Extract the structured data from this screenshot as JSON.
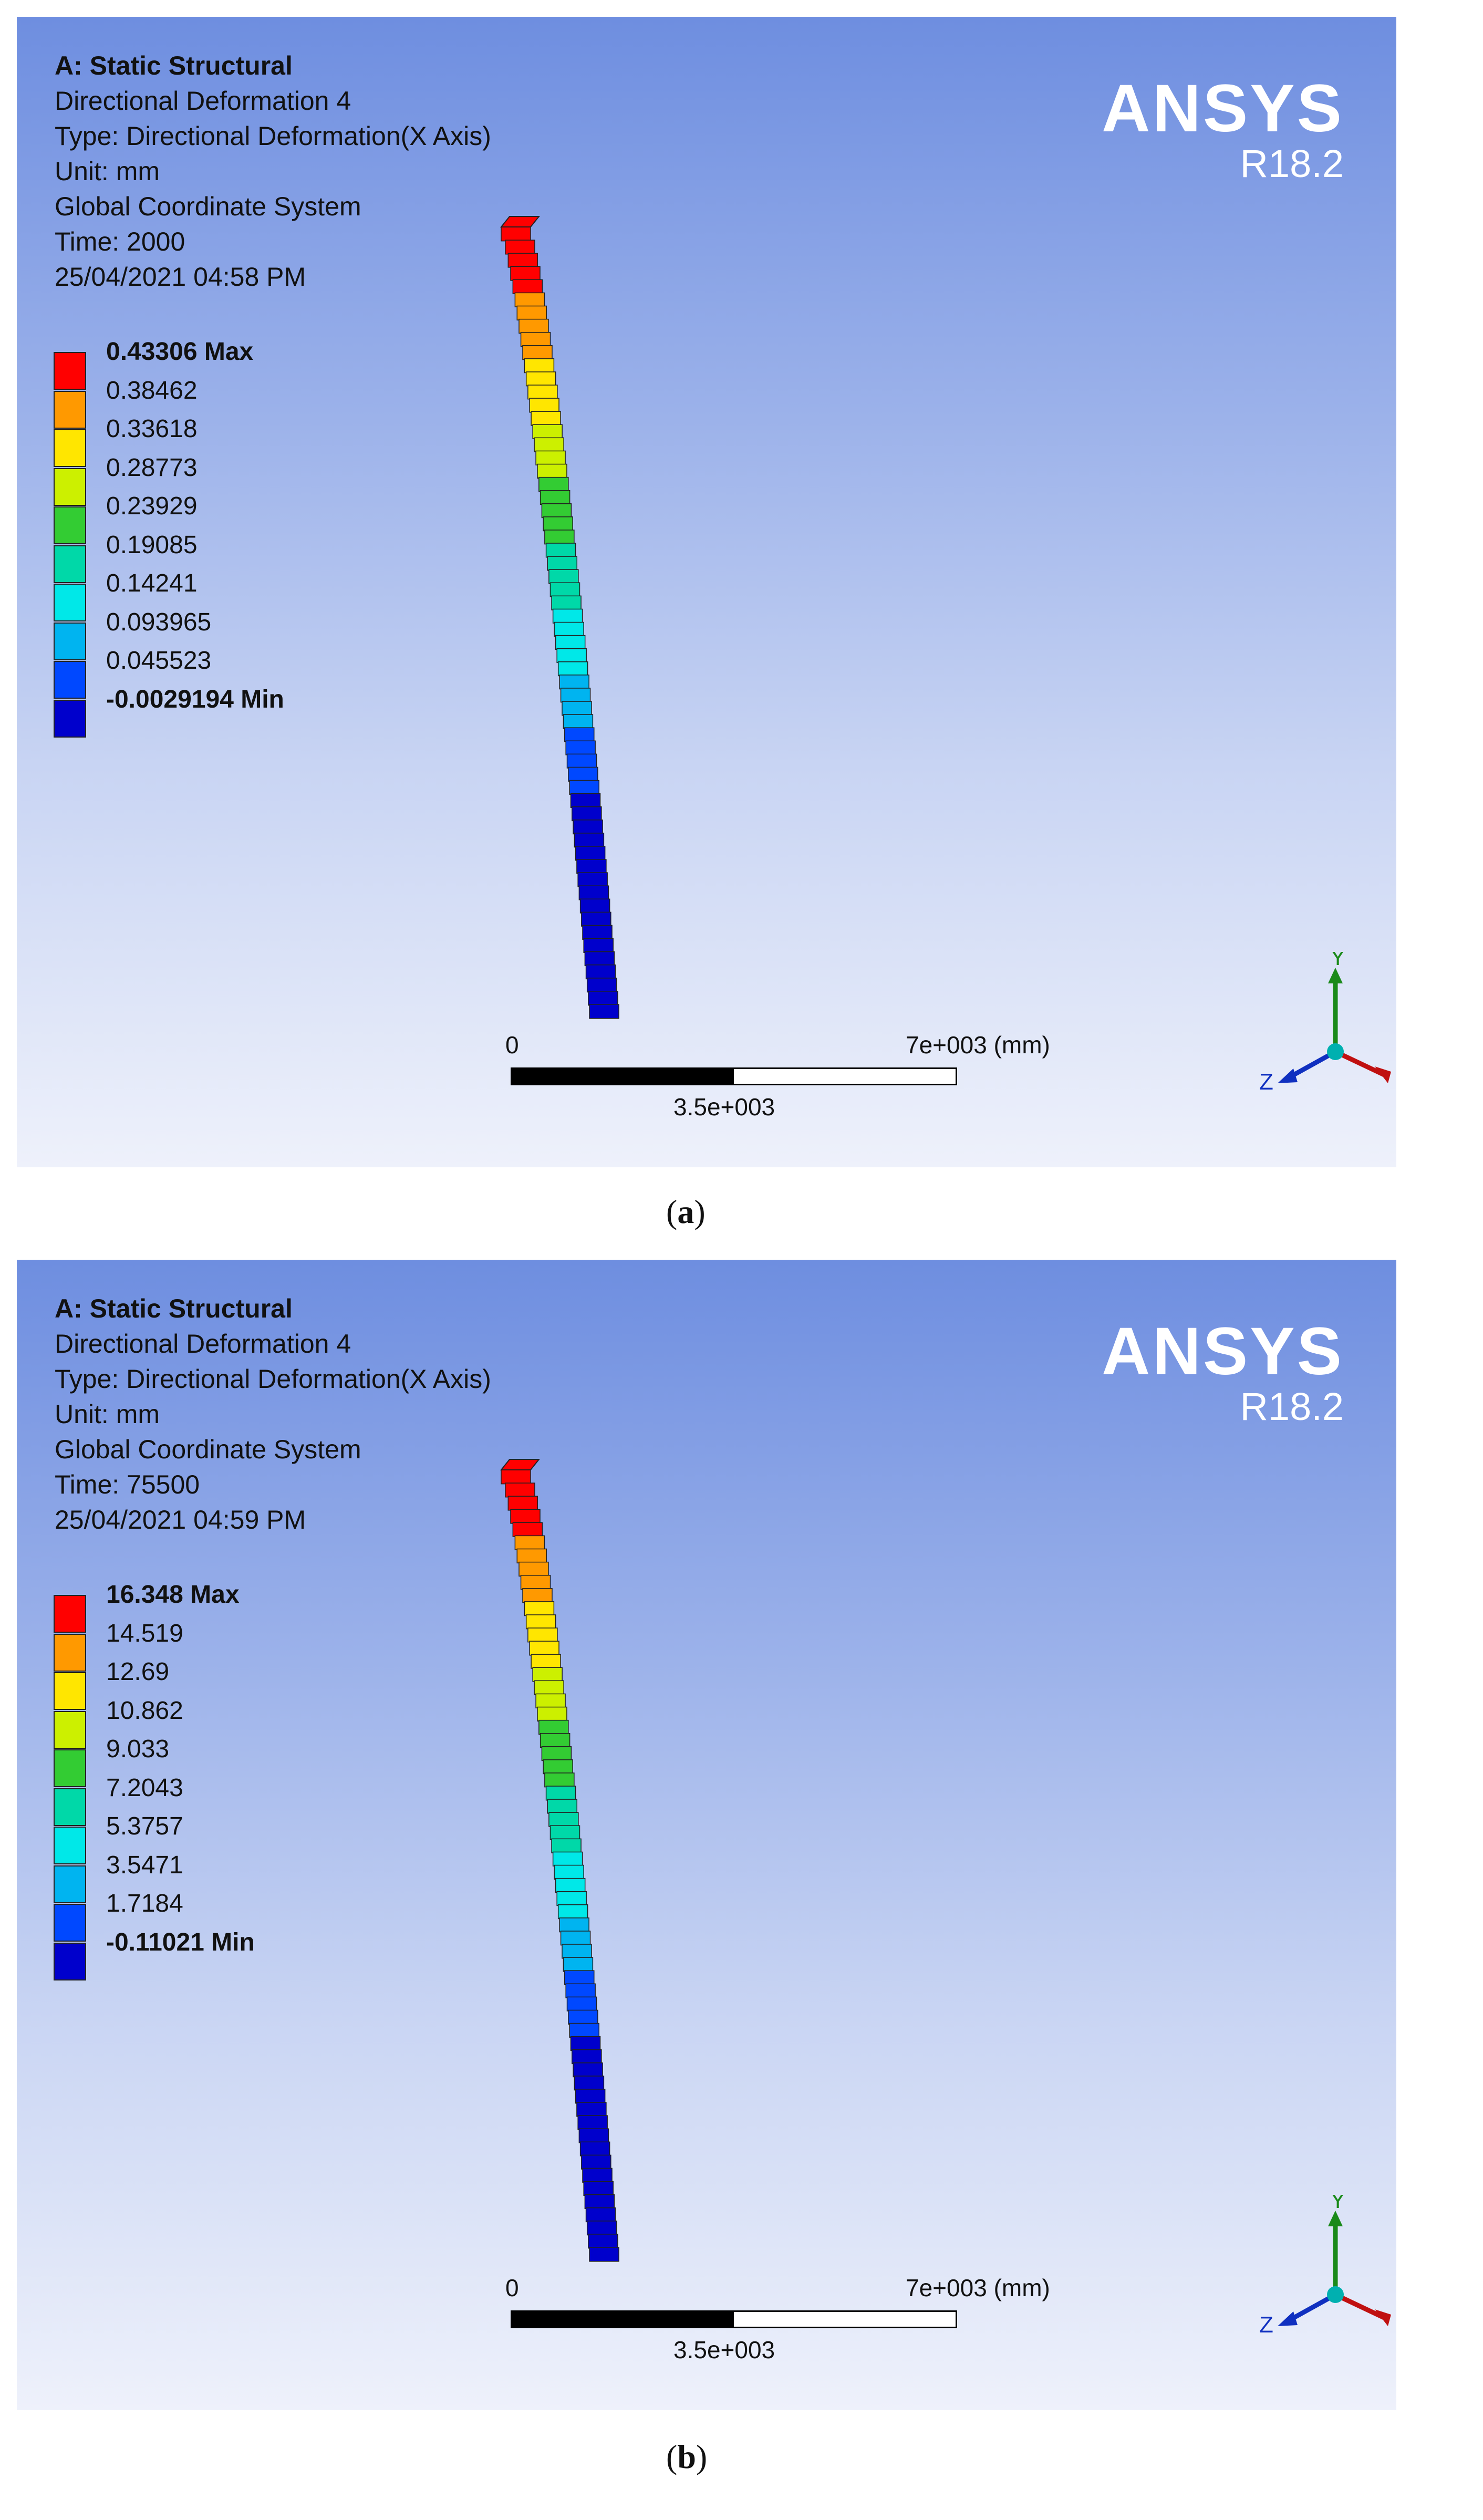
{
  "panels": [
    {
      "id": "a",
      "header": {
        "title": "A: Static Structural",
        "result": "Directional Deformation 4",
        "type": "Type: Directional Deformation(X Axis)",
        "unit": "Unit: mm",
        "coord": "Global Coordinate System",
        "time": "Time: 2000",
        "datetime": "25/04/2021 04:58 PM"
      },
      "logo": {
        "brand": "ANSYS",
        "version": "R18.2"
      },
      "legend": [
        "0.43306 Max",
        "0.38462",
        "0.33618",
        "0.28773",
        "0.23929",
        "0.19085",
        "0.14241",
        "0.093965",
        "0.045523",
        "-0.0029194 Min"
      ],
      "scale": {
        "start": "0",
        "end": "7e+003 (mm)",
        "mid": "3.5e+003"
      },
      "axes": {
        "y": "Y",
        "x": "X",
        "z": "Z"
      },
      "caption": "a"
    },
    {
      "id": "b",
      "header": {
        "title": "A: Static Structural",
        "result": "Directional Deformation 4",
        "type": "Type: Directional Deformation(X Axis)",
        "unit": "Unit: mm",
        "coord": "Global Coordinate System",
        "time": "Time: 75500",
        "datetime": "25/04/2021 04:59 PM"
      },
      "logo": {
        "brand": "ANSYS",
        "version": "R18.2"
      },
      "legend": [
        "16.348 Max",
        "14.519",
        "12.69",
        "10.862",
        "9.033",
        "7.2043",
        "5.3757",
        "3.5471",
        "1.7184",
        "-0.11021 Min"
      ],
      "scale": {
        "start": "0",
        "end": "7e+003 (mm)",
        "mid": "3.5e+003"
      },
      "axes": {
        "y": "Y",
        "x": "X",
        "z": "Z"
      },
      "caption": "b"
    }
  ],
  "colors": {
    "contour": [
      "#ff0000",
      "#ff9900",
      "#ffe600",
      "#ccf000",
      "#33cc33",
      "#00d8a8",
      "#00e8e8",
      "#00b4f0",
      "#0048ff",
      "#0000cc"
    ],
    "axis_y": "#1a8a1a",
    "axis_x": "#c01010",
    "axis_z": "#1030c0",
    "origin": "#00b0b0"
  }
}
